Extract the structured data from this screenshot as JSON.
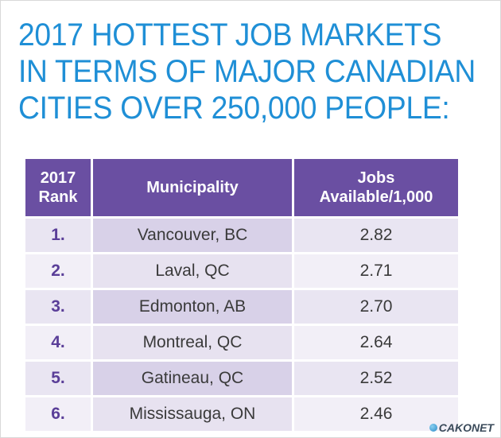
{
  "title": {
    "lines": [
      "2017 HOTTEST JOB MARKETS",
      "IN TERMS OF MAJOR CANADIAN",
      "CITIES OVER 250,000 PEOPLE:"
    ]
  },
  "table": {
    "headers": {
      "rank": "2017\nRank",
      "municipality": "Municipality",
      "jobs": "Jobs\nAvailable/1,000"
    },
    "rows": [
      {
        "rank": "1.",
        "municipality": "Vancouver, BC",
        "jobs": "2.82"
      },
      {
        "rank": "2.",
        "municipality": "Laval, QC",
        "jobs": "2.71"
      },
      {
        "rank": "3.",
        "municipality": "Edmonton, AB",
        "jobs": "2.70"
      },
      {
        "rank": "4.",
        "municipality": "Montreal, QC",
        "jobs": "2.64"
      },
      {
        "rank": "5.",
        "municipality": "Gatineau, QC",
        "jobs": "2.52"
      },
      {
        "rank": "6.",
        "municipality": "Mississauga, ON",
        "jobs": "2.46"
      }
    ]
  },
  "colors": {
    "title": "#1f8fd6",
    "header_bg": "#6a4fa2",
    "rank_text": "#5a3e98",
    "row_bg": "#d8d1e8"
  },
  "watermark": {
    "text": "CAKONET"
  }
}
